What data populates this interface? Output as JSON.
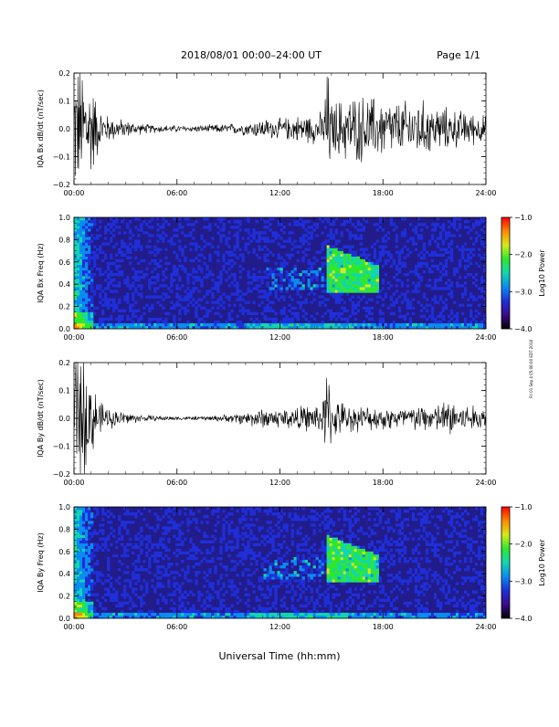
{
  "header": {
    "title": "2018/08/01   00:00–24:00 UT",
    "page": "Page 1/1"
  },
  "side_note": "Fri 01 Sep 4 05:06:00 EDT 2018",
  "x_axis": {
    "label": "Universal Time (hh:mm)",
    "ticks": [
      "00:00",
      "06:00",
      "12:00",
      "18:00",
      "24:00"
    ]
  },
  "colors": {
    "waveform": "#000000",
    "colorbar": [
      "#000000",
      "#3b0a8c",
      "#1e2fd9",
      "#0a8cf0",
      "#12d6b0",
      "#2ee82e",
      "#d6ea1a",
      "#ff8a00",
      "#ff0000"
    ]
  },
  "chart_data": [
    {
      "type": "line",
      "ylabel": "IQA Bx dB/dt (nT/sec)",
      "xlim": [
        0,
        24
      ],
      "ylim": [
        -0.2,
        0.2
      ],
      "yticks": [
        "0.2",
        "0.1",
        "0.0",
        "−0.1",
        "−0.2"
      ],
      "yvals": [
        0.2,
        0.1,
        0.0,
        -0.1,
        -0.2
      ],
      "series": [
        {
          "x": [
            0,
            0.5,
            1,
            1.5,
            2,
            3,
            4,
            5,
            6,
            7,
            8,
            9,
            10,
            11,
            12,
            13,
            14,
            14.5,
            14.75,
            15,
            16,
            17,
            18,
            19,
            20,
            21,
            22,
            23,
            24
          ],
          "amplitude": [
            0.2,
            0.2,
            0.15,
            0.06,
            0.04,
            0.025,
            0.015,
            0.012,
            0.01,
            0.01,
            0.012,
            0.015,
            0.02,
            0.03,
            0.03,
            0.04,
            0.045,
            0.05,
            0.2,
            0.08,
            0.1,
            0.1,
            0.09,
            0.08,
            0.09,
            0.07,
            0.06,
            0.05,
            0.04
          ]
        }
      ]
    },
    {
      "type": "heatmap",
      "ylabel": "IQA Bx Freq (Hz)",
      "xlim": [
        0,
        24
      ],
      "ylim": [
        0,
        1.0
      ],
      "yticks": [
        "1.0",
        "0.8",
        "0.6",
        "0.4",
        "0.2",
        "0.0"
      ],
      "yvals": [
        1.0,
        0.8,
        0.6,
        0.4,
        0.2,
        0.0
      ],
      "colorbar": {
        "label": "Log10 Power",
        "range": [
          -4.0,
          -1.0
        ],
        "ticks": [
          "−1.0",
          "−2.0",
          "−3.0",
          "−4.0"
        ],
        "tvals": [
          -1.0,
          -2.0,
          -3.0,
          -4.0
        ]
      }
    },
    {
      "type": "line",
      "ylabel": "IQA By dB/dt (nT/sec)",
      "xlim": [
        0,
        24
      ],
      "ylim": [
        -0.2,
        0.2
      ],
      "yticks": [
        "0.2",
        "0.1",
        "0.0",
        "−0.1",
        "−0.2"
      ],
      "yvals": [
        0.2,
        0.1,
        0.0,
        -0.1,
        -0.2
      ],
      "series": [
        {
          "x": [
            0,
            0.5,
            1,
            1.5,
            2,
            3,
            4,
            5,
            6,
            7,
            8,
            9,
            10,
            11,
            12,
            13,
            14,
            14.5,
            14.75,
            15,
            16,
            17,
            18,
            19,
            20,
            21,
            22,
            23,
            24
          ],
          "amplitude": [
            0.2,
            0.2,
            0.12,
            0.05,
            0.03,
            0.02,
            0.01,
            0.008,
            0.006,
            0.006,
            0.008,
            0.012,
            0.02,
            0.03,
            0.03,
            0.035,
            0.04,
            0.05,
            0.18,
            0.06,
            0.04,
            0.035,
            0.035,
            0.035,
            0.04,
            0.04,
            0.06,
            0.04,
            0.03
          ]
        }
      ]
    },
    {
      "type": "heatmap",
      "ylabel": "IQA By Freq (Hz)",
      "xlim": [
        0,
        24
      ],
      "ylim": [
        0,
        1.0
      ],
      "yticks": [
        "1.0",
        "0.8",
        "0.6",
        "0.4",
        "0.2",
        "0.0"
      ],
      "yvals": [
        1.0,
        0.8,
        0.6,
        0.4,
        0.2,
        0.0
      ],
      "colorbar": {
        "label": "Log10 Power",
        "range": [
          -4.0,
          -1.0
        ],
        "ticks": [
          "−1.0",
          "−2.0",
          "−3.0",
          "−4.0"
        ],
        "tvals": [
          -1.0,
          -2.0,
          -3.0,
          -4.0
        ]
      }
    }
  ]
}
